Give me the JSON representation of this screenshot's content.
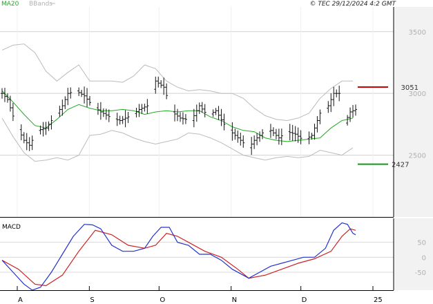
{
  "legend": {
    "ma_label": "MA20",
    "bb_label": "BBands"
  },
  "copyright": "© TEC 29/12/2024 4:2 GMT",
  "macd_label": "MACD",
  "colors": {
    "ma": "#22aa22",
    "bbands": "#bbbbbb",
    "price": "#111111",
    "resistance": "#cc0000",
    "support": "#119911",
    "macd": "#2233cc",
    "signal": "#cc2222",
    "axis_text": "#b0b0b0",
    "panel": "#e8e8e8"
  },
  "chart_data": [
    {
      "type": "ohlc",
      "y_ticks": [
        "3500",
        "3000",
        "2500"
      ],
      "ylim": [
        2000,
        3700
      ],
      "x_ticks": [
        {
          "label": "A",
          "day": 0
        },
        {
          "label": "S",
          "day": 31
        },
        {
          "label": "O",
          "day": 61
        },
        {
          "label": "N",
          "day": 92
        },
        {
          "label": "D",
          "day": 122
        },
        {
          "label": "25",
          "day": 153
        }
      ],
      "resistance": {
        "label": "3051",
        "value": 3051
      },
      "support": {
        "label": "2427",
        "value": 2427
      },
      "close_points": [
        [
          0,
          3000
        ],
        [
          2,
          2950
        ],
        [
          5,
          2750
        ],
        [
          8,
          2620
        ],
        [
          10,
          2580
        ],
        [
          13,
          2700
        ],
        [
          16,
          2720
        ],
        [
          19,
          2810
        ],
        [
          22,
          2900
        ],
        [
          24,
          3000
        ],
        [
          27,
          3020
        ],
        [
          30,
          2980
        ],
        [
          33,
          2900
        ],
        [
          36,
          2850
        ],
        [
          40,
          2800
        ],
        [
          43,
          2780
        ],
        [
          47,
          2820
        ],
        [
          50,
          2870
        ],
        [
          53,
          2900
        ],
        [
          56,
          3100
        ],
        [
          59,
          3050
        ],
        [
          62,
          2850
        ],
        [
          65,
          2800
        ],
        [
          69,
          2780
        ],
        [
          72,
          2900
        ],
        [
          75,
          2820
        ],
        [
          78,
          2860
        ],
        [
          81,
          2750
        ],
        [
          84,
          2680
        ],
        [
          87,
          2620
        ],
        [
          90,
          2560
        ],
        [
          92,
          2620
        ],
        [
          95,
          2680
        ],
        [
          98,
          2700
        ],
        [
          101,
          2640
        ],
        [
          104,
          2690
        ],
        [
          107,
          2670
        ],
        [
          110,
          2620
        ],
        [
          113,
          2660
        ],
        [
          116,
          2840
        ],
        [
          119,
          2900
        ],
        [
          121,
          3000
        ],
        [
          123,
          3000
        ],
        [
          125,
          2760
        ],
        [
          127,
          2850
        ],
        [
          129,
          2870
        ]
      ],
      "ma20_points": [
        [
          0,
          3020
        ],
        [
          4,
          2930
        ],
        [
          8,
          2830
        ],
        [
          12,
          2740
        ],
        [
          16,
          2720
        ],
        [
          20,
          2790
        ],
        [
          24,
          2870
        ],
        [
          28,
          2910
        ],
        [
          32,
          2880
        ],
        [
          36,
          2860
        ],
        [
          40,
          2860
        ],
        [
          44,
          2870
        ],
        [
          48,
          2860
        ],
        [
          52,
          2830
        ],
        [
          56,
          2850
        ],
        [
          60,
          2860
        ],
        [
          64,
          2850
        ],
        [
          68,
          2860
        ],
        [
          72,
          2860
        ],
        [
          76,
          2810
        ],
        [
          80,
          2780
        ],
        [
          84,
          2730
        ],
        [
          88,
          2700
        ],
        [
          92,
          2690
        ],
        [
          96,
          2640
        ],
        [
          100,
          2620
        ],
        [
          104,
          2610
        ],
        [
          108,
          2620
        ],
        [
          112,
          2630
        ],
        [
          116,
          2640
        ],
        [
          120,
          2720
        ],
        [
          124,
          2780
        ],
        [
          128,
          2800
        ]
      ],
      "bb_upper_points": [
        [
          0,
          3350
        ],
        [
          4,
          3390
        ],
        [
          8,
          3400
        ],
        [
          12,
          3330
        ],
        [
          16,
          3180
        ],
        [
          20,
          3100
        ],
        [
          24,
          3170
        ],
        [
          28,
          3230
        ],
        [
          32,
          3100
        ],
        [
          36,
          3100
        ],
        [
          40,
          3100
        ],
        [
          44,
          3090
        ],
        [
          48,
          3140
        ],
        [
          52,
          3230
        ],
        [
          56,
          3200
        ],
        [
          60,
          3100
        ],
        [
          64,
          3050
        ],
        [
          68,
          3020
        ],
        [
          72,
          3030
        ],
        [
          76,
          3020
        ],
        [
          80,
          3000
        ],
        [
          84,
          3000
        ],
        [
          88,
          2960
        ],
        [
          92,
          2880
        ],
        [
          96,
          2820
        ],
        [
          100,
          2790
        ],
        [
          104,
          2780
        ],
        [
          108,
          2800
        ],
        [
          112,
          2840
        ],
        [
          116,
          2960
        ],
        [
          120,
          3040
        ],
        [
          124,
          3100
        ],
        [
          128,
          3100
        ]
      ],
      "bb_lower_points": [
        [
          0,
          2800
        ],
        [
          4,
          2650
        ],
        [
          8,
          2520
        ],
        [
          12,
          2450
        ],
        [
          16,
          2460
        ],
        [
          20,
          2480
        ],
        [
          24,
          2460
        ],
        [
          28,
          2500
        ],
        [
          32,
          2660
        ],
        [
          36,
          2670
        ],
        [
          40,
          2700
        ],
        [
          44,
          2680
        ],
        [
          48,
          2640
        ],
        [
          52,
          2610
        ],
        [
          56,
          2590
        ],
        [
          60,
          2610
        ],
        [
          64,
          2630
        ],
        [
          68,
          2680
        ],
        [
          72,
          2670
        ],
        [
          76,
          2640
        ],
        [
          80,
          2600
        ],
        [
          84,
          2550
        ],
        [
          88,
          2500
        ],
        [
          92,
          2480
        ],
        [
          96,
          2460
        ],
        [
          100,
          2480
        ],
        [
          104,
          2490
        ],
        [
          108,
          2480
        ],
        [
          112,
          2490
        ],
        [
          116,
          2540
        ],
        [
          120,
          2520
        ],
        [
          124,
          2500
        ],
        [
          128,
          2560
        ]
      ]
    },
    {
      "type": "line",
      "y_ticks": [
        "50",
        "0",
        "-50"
      ],
      "ylim": [
        -110,
        130
      ],
      "series": [
        {
          "name": "",
          "points": [
            [
              0,
              -10
            ],
            [
              4,
              -50
            ],
            [
              8,
              -90
            ],
            [
              11,
              -110
            ],
            [
              14,
              -100
            ],
            [
              18,
              -50
            ],
            [
              22,
              10
            ],
            [
              26,
              70
            ],
            [
              30,
              110
            ],
            [
              33,
              108
            ],
            [
              36,
              95
            ],
            [
              40,
              40
            ],
            [
              44,
              20
            ],
            [
              48,
              20
            ],
            [
              52,
              30
            ],
            [
              55,
              70
            ],
            [
              58,
              100
            ],
            [
              61,
              100
            ],
            [
              64,
              50
            ],
            [
              68,
              40
            ],
            [
              72,
              10
            ],
            [
              76,
              10
            ],
            [
              80,
              -10
            ],
            [
              84,
              -40
            ],
            [
              88,
              -60
            ],
            [
              90,
              -70
            ],
            [
              94,
              -50
            ],
            [
              98,
              -30
            ],
            [
              102,
              -20
            ],
            [
              106,
              -10
            ],
            [
              110,
              0
            ],
            [
              114,
              0
            ],
            [
              118,
              30
            ],
            [
              121,
              90
            ],
            [
              124,
              115
            ],
            [
              126,
              110
            ],
            [
              128,
              80
            ],
            [
              129,
              75
            ]
          ]
        },
        {
          "name": "",
          "points": [
            [
              0,
              -10
            ],
            [
              6,
              -40
            ],
            [
              12,
              -90
            ],
            [
              16,
              -95
            ],
            [
              22,
              -60
            ],
            [
              28,
              20
            ],
            [
              34,
              90
            ],
            [
              40,
              75
            ],
            [
              46,
              40
            ],
            [
              52,
              30
            ],
            [
              56,
              40
            ],
            [
              60,
              80
            ],
            [
              64,
              70
            ],
            [
              68,
              50
            ],
            [
              74,
              20
            ],
            [
              80,
              0
            ],
            [
              86,
              -40
            ],
            [
              90,
              -70
            ],
            [
              96,
              -60
            ],
            [
              102,
              -40
            ],
            [
              108,
              -20
            ],
            [
              114,
              -5
            ],
            [
              120,
              20
            ],
            [
              124,
              70
            ],
            [
              127,
              95
            ],
            [
              129,
              90
            ]
          ]
        }
      ]
    }
  ]
}
